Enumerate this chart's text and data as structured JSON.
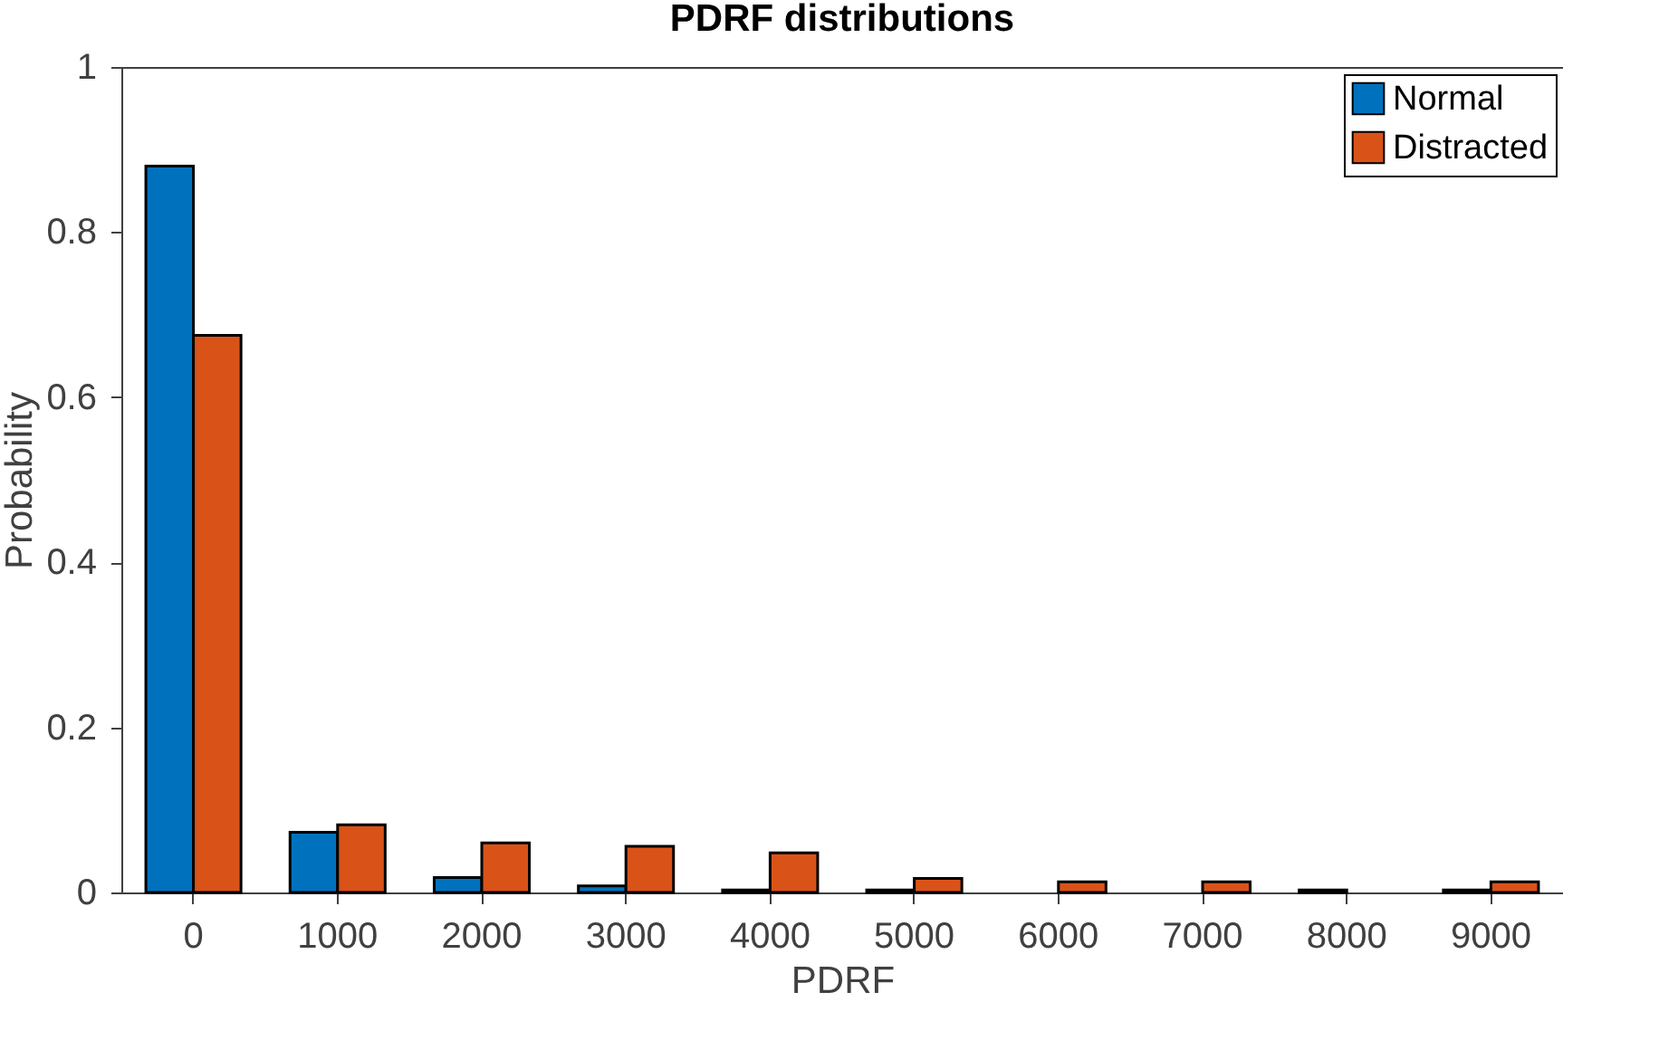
{
  "chart_data": {
    "type": "bar",
    "title": "PDRF distributions",
    "xlabel": "PDRF",
    "ylabel": "Probability",
    "categories": [
      "0",
      "1000",
      "2000",
      "3000",
      "4000",
      "5000",
      "6000",
      "7000",
      "8000",
      "9000"
    ],
    "series": [
      {
        "name": "Normal",
        "color": "#0072bd",
        "values": [
          0.88,
          0.073,
          0.018,
          0.008,
          0.003,
          0.003,
          0,
          0,
          0.003,
          0.003
        ]
      },
      {
        "name": "Distracted",
        "color": "#d95319",
        "values": [
          0.675,
          0.082,
          0.06,
          0.056,
          0.048,
          0.017,
          0.013,
          0.013,
          0,
          0.013
        ]
      }
    ],
    "ylim": [
      0,
      1
    ],
    "yticks": [
      0,
      0.2,
      0.4,
      0.6,
      0.8,
      1
    ],
    "legend": "top right"
  }
}
